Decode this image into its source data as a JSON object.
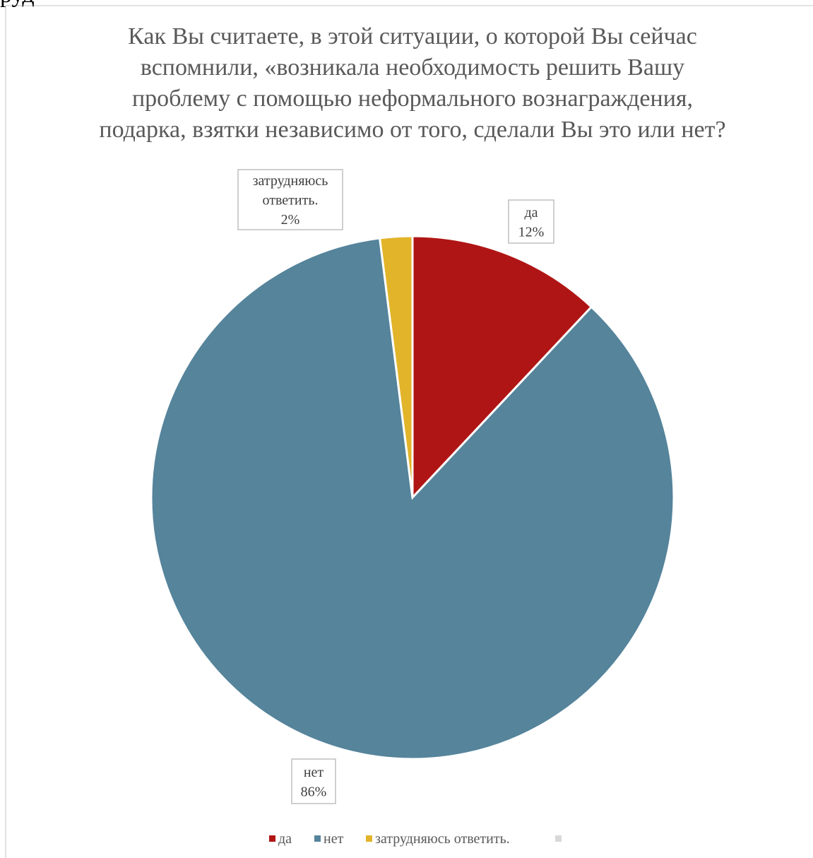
{
  "page_fragment": "руд",
  "chart_data": {
    "type": "pie",
    "title": "Как Вы считаете, в этой ситуации, о которой Вы сейчас вспомнили, «возникала необходимость решить Вашу проблему с помощью неформального вознаграждения, подарка, взятки независимо от того, сделали Вы это или нет?",
    "categories": [
      "да",
      "нет",
      "затрудняюсь ответить.",
      null
    ],
    "values": [
      12,
      86,
      2,
      null
    ],
    "value_labels": [
      "12%",
      "86%",
      "2%",
      null
    ],
    "colors": [
      "#b01515",
      "#55849b",
      "#e2b42a",
      "#d9d9d9"
    ],
    "legend": "bottom"
  }
}
